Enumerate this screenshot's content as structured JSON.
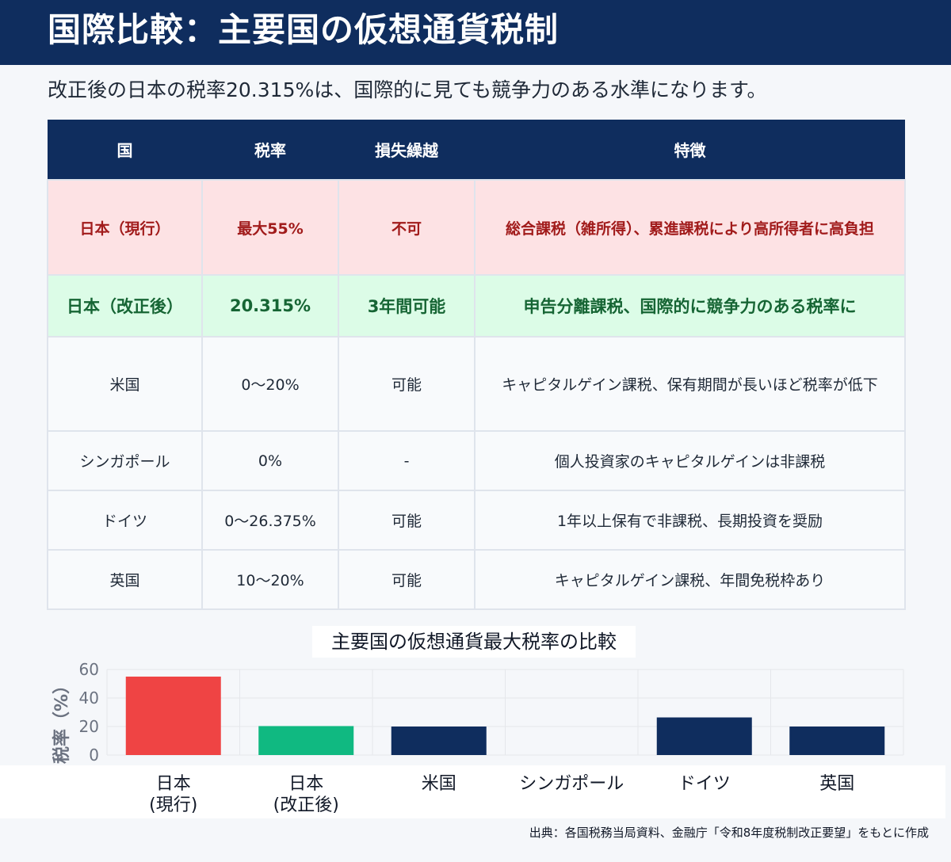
{
  "header": {
    "title": "国際比較：主要国の仮想通貨税制"
  },
  "subtitle": "改正後の日本の税率20.315%は、国際的に見ても競争力のある水準になります。",
  "table": {
    "headers": [
      "国",
      "税率",
      "損失繰越",
      "特徴"
    ],
    "rows": [
      [
        "日本（現行）",
        "最大55%",
        "不可",
        "総合課税（雑所得）、累進課税により高所得者に高負担"
      ],
      [
        "日本（改正後）",
        "20.315%",
        "3年間可能",
        "申告分離課税、国際的に競争力のある税率に"
      ],
      [
        "米国",
        "0〜20%",
        "可能",
        "キャピタルゲイン課税、保有期間が長いほど税率が低下"
      ],
      [
        "シンガポール",
        "0%",
        "-",
        "個人投資家のキャピタルゲインは非課税"
      ],
      [
        "ドイツ",
        "0〜26.375%",
        "可能",
        "1年以上保有で非課税、長期投資を奨励"
      ],
      [
        "英国",
        "10〜20%",
        "可能",
        "キャピタルゲイン課税、年間免税枠あり"
      ]
    ]
  },
  "chart_data": {
    "type": "bar",
    "title": "主要国の仮想通貨最大税率の比較",
    "ylabel": "税率（%）",
    "xlabel": "",
    "categories": [
      "日本\n(現行)",
      "日本\n(改正後)",
      "米国",
      "シンガポール",
      "ドイツ",
      "英国"
    ],
    "values": [
      55,
      20.315,
      20,
      0,
      26.375,
      20
    ],
    "colors": [
      "#ef4444",
      "#10b981",
      "#0f2d5e",
      "#0f2d5e",
      "#0f2d5e",
      "#0f2d5e"
    ],
    "ylim": [
      0,
      60
    ],
    "yticks": [
      0,
      20,
      40,
      60
    ],
    "grid": true
  },
  "source": "出典：各国税務当局資料、金融庁「令和8年度税制改正要望」をもとに作成",
  "colors": {
    "navy": "#0f2d5e",
    "red": "#ef4444",
    "green": "#10b981"
  }
}
